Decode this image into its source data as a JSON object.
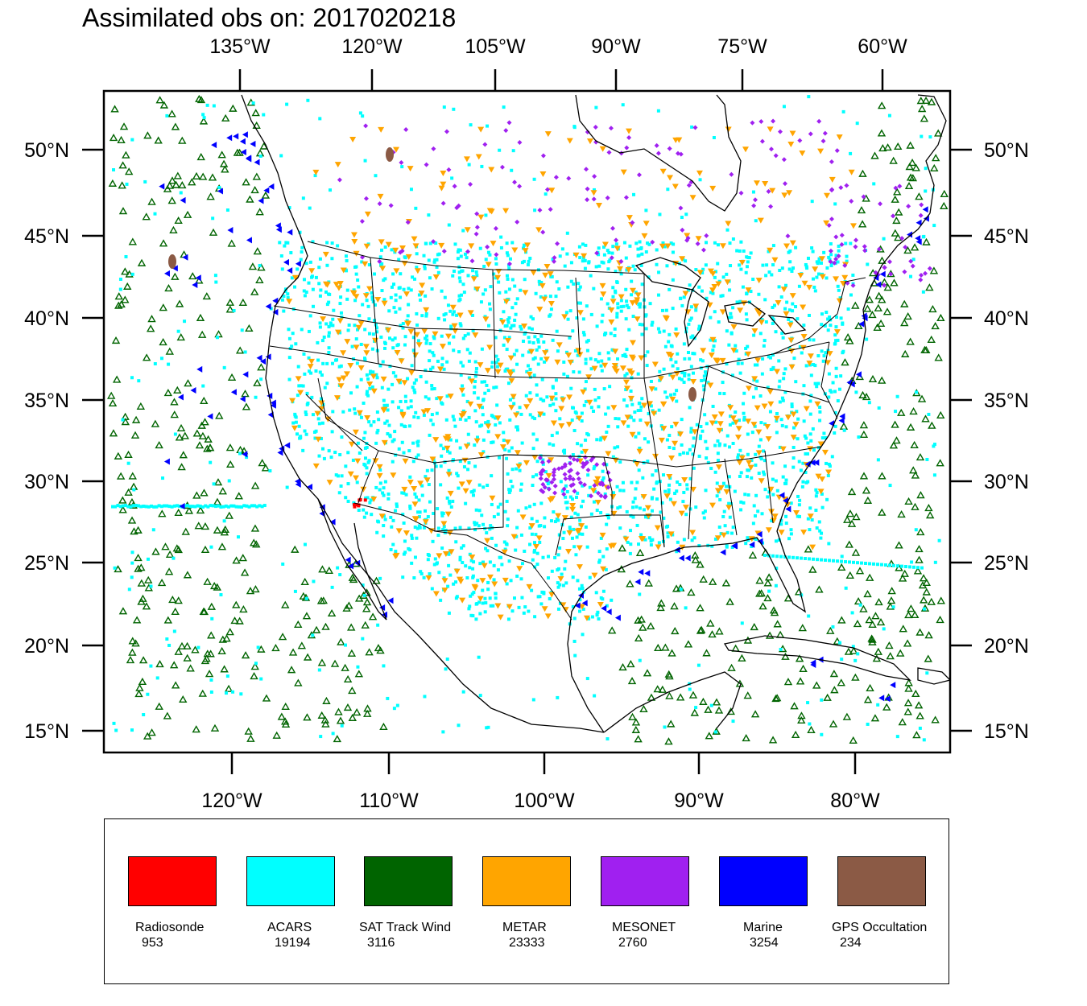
{
  "title": "Assimilated obs on: 2017020218",
  "map": {
    "top_lon_labels": [
      "135°W",
      "120°W",
      "105°W",
      "90°W",
      "75°W",
      "60°W"
    ],
    "bottom_lon_labels": [
      "120°W",
      "110°W",
      "100°W",
      "90°W",
      "80°W"
    ],
    "lat_labels": [
      "50°N",
      "45°N",
      "40°N",
      "35°N",
      "30°N",
      "25°N",
      "20°N",
      "15°N"
    ]
  },
  "legend": [
    {
      "name": "Radiosonde",
      "count": "953",
      "color": "#ff0000"
    },
    {
      "name": "ACARS",
      "count": "19194",
      "color": "#00ffff"
    },
    {
      "name": "SAT Track Wind",
      "count": "3116",
      "color": "#006400"
    },
    {
      "name": "METAR",
      "count": "23333",
      "color": "#ffa500"
    },
    {
      "name": "MESONET",
      "count": "2760",
      "color": "#a020f0"
    },
    {
      "name": "Marine",
      "count": "3254",
      "color": "#0000ff"
    },
    {
      "name": "GPS Occultation",
      "count": "234",
      "color": "#8b5a45"
    }
  ]
}
